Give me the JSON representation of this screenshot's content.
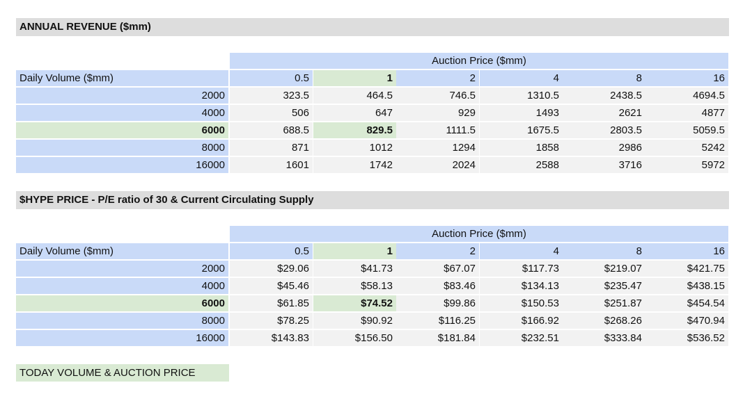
{
  "tables": [
    {
      "title": "ANNUAL REVENUE ($mm)",
      "column_group_label": "Auction Price ($mm)",
      "row_header_label": "Daily Volume ($mm)",
      "columns": [
        "0.5",
        "1",
        "2",
        "4",
        "8",
        "16"
      ],
      "rows": [
        {
          "label": "2000",
          "values": [
            "323.5",
            "464.5",
            "746.5",
            "1310.5",
            "2438.5",
            "4694.5"
          ]
        },
        {
          "label": "4000",
          "values": [
            "506",
            "647",
            "929",
            "1493",
            "2621",
            "4877"
          ]
        },
        {
          "label": "6000",
          "values": [
            "688.5",
            "829.5",
            "1111.5",
            "1675.5",
            "2803.5",
            "5059.5"
          ]
        },
        {
          "label": "8000",
          "values": [
            "871",
            "1012",
            "1294",
            "1858",
            "2986",
            "5242"
          ]
        },
        {
          "label": "16000",
          "values": [
            "1601",
            "1742",
            "2024",
            "2588",
            "3716",
            "5972"
          ]
        }
      ]
    },
    {
      "title": "$HYPE PRICE - P/E ratio of 30 & Current Circulating Supply",
      "column_group_label": "Auction Price ($mm)",
      "row_header_label": "Daily Volume ($mm)",
      "columns": [
        "0.5",
        "1",
        "2",
        "4",
        "8",
        "16"
      ],
      "rows": [
        {
          "label": "2000",
          "values": [
            "$29.06",
            "$41.73",
            "$67.07",
            "$117.73",
            "$219.07",
            "$421.75"
          ]
        },
        {
          "label": "4000",
          "values": [
            "$45.46",
            "$58.13",
            "$83.46",
            "$134.13",
            "$235.47",
            "$438.15"
          ]
        },
        {
          "label": "6000",
          "values": [
            "$61.85",
            "$74.52",
            "$99.86",
            "$150.53",
            "$251.87",
            "$454.54"
          ]
        },
        {
          "label": "8000",
          "values": [
            "$78.25",
            "$90.92",
            "$116.25",
            "$166.92",
            "$268.26",
            "$470.94"
          ]
        },
        {
          "label": "16000",
          "values": [
            "$143.83",
            "$156.50",
            "$181.84",
            "$232.51",
            "$333.84",
            "$536.52"
          ]
        }
      ]
    }
  ],
  "highlight": {
    "row": "6000",
    "column": "1",
    "color": "#d9ead3"
  },
  "colors": {
    "header_gray": "#dddddd",
    "label_blue": "#c9daf8",
    "cell_gray": "#f2f2f2",
    "highlight_green": "#d9ead3"
  },
  "legend_note": "TODAY VOLUME & AUCTION PRICE"
}
